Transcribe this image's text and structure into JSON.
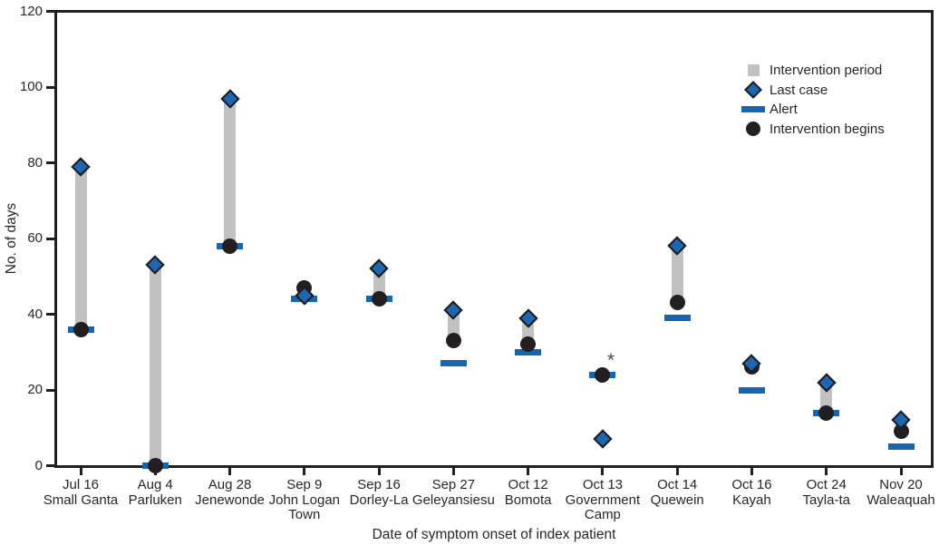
{
  "chart_data": {
    "type": "scatter",
    "title": "",
    "xlabel": "Date of symptom onset of index patient",
    "ylabel": "No. of days",
    "ylim": [
      0,
      120
    ],
    "yticks": [
      0,
      20,
      40,
      60,
      80,
      100,
      120
    ],
    "grid": false,
    "legend_position": "upper-right-inside",
    "legend": [
      {
        "key": "intervention_period",
        "label": "Intervention period",
        "swatch": "gray-square"
      },
      {
        "key": "last_case",
        "label": "Last case",
        "swatch": "blue-diamond"
      },
      {
        "key": "alert",
        "label": "Alert",
        "swatch": "blue-bar"
      },
      {
        "key": "intervention_begins",
        "label": "Intervention begins",
        "swatch": "black-circle"
      }
    ],
    "colors": {
      "intervention_period": "#c2c1c1",
      "last_case_fill": "#1c67b0",
      "last_case_border": "#1d1b1c",
      "alert": "#1565b0",
      "intervention_begins": "#231f20",
      "axis": "#231f20",
      "text": "#2a242b"
    },
    "points": [
      {
        "date": "Jul 16",
        "community": "Small Ganta",
        "alert": 36,
        "intervention_begins": 36,
        "last_case": 79,
        "intervention_period": [
          36,
          79
        ]
      },
      {
        "date": "Aug 4",
        "community": "Parluken",
        "alert": 0,
        "intervention_begins": 0,
        "last_case": 53,
        "intervention_period": [
          0,
          53
        ]
      },
      {
        "date": "Aug 28",
        "community": "Jenewonde",
        "alert": 58,
        "intervention_begins": 58,
        "last_case": 97,
        "intervention_period": [
          58,
          97
        ]
      },
      {
        "date": "Sep 9",
        "community": "John Logan Town",
        "alert": 44,
        "intervention_begins": 47,
        "last_case": 45,
        "intervention_period": null
      },
      {
        "date": "Sep 16",
        "community": "Dorley-La",
        "alert": 44,
        "intervention_begins": 44,
        "last_case": 52,
        "intervention_period": [
          44,
          52
        ]
      },
      {
        "date": "Sep 27",
        "community": "Geleyansiesu",
        "alert": 27,
        "intervention_begins": 33,
        "last_case": 41,
        "intervention_period": [
          33,
          41
        ]
      },
      {
        "date": "Oct 12",
        "community": "Bomota",
        "alert": 30,
        "intervention_begins": 32,
        "last_case": 39,
        "intervention_period": [
          32,
          39
        ]
      },
      {
        "date": "Oct 13",
        "community": "Government Camp",
        "alert": 24,
        "intervention_begins": 24,
        "last_case": 7,
        "intervention_period": null,
        "annotation": "*"
      },
      {
        "date": "Oct 14",
        "community": "Quewein",
        "alert": 39,
        "intervention_begins": 43,
        "last_case": 58,
        "intervention_period": [
          43,
          58
        ]
      },
      {
        "date": "Oct 16",
        "community": "Kayah",
        "alert": 20,
        "intervention_begins": 26,
        "last_case": 27,
        "intervention_period": [
          26,
          27
        ]
      },
      {
        "date": "Oct 24",
        "community": "Tayla-ta",
        "alert": 14,
        "intervention_begins": 14,
        "last_case": 22,
        "intervention_period": [
          14,
          22
        ]
      },
      {
        "date": "Nov 20",
        "community": "Waleaquah",
        "alert": 5,
        "intervention_begins": 9,
        "last_case": 12,
        "intervention_period": [
          9,
          12
        ]
      }
    ]
  }
}
